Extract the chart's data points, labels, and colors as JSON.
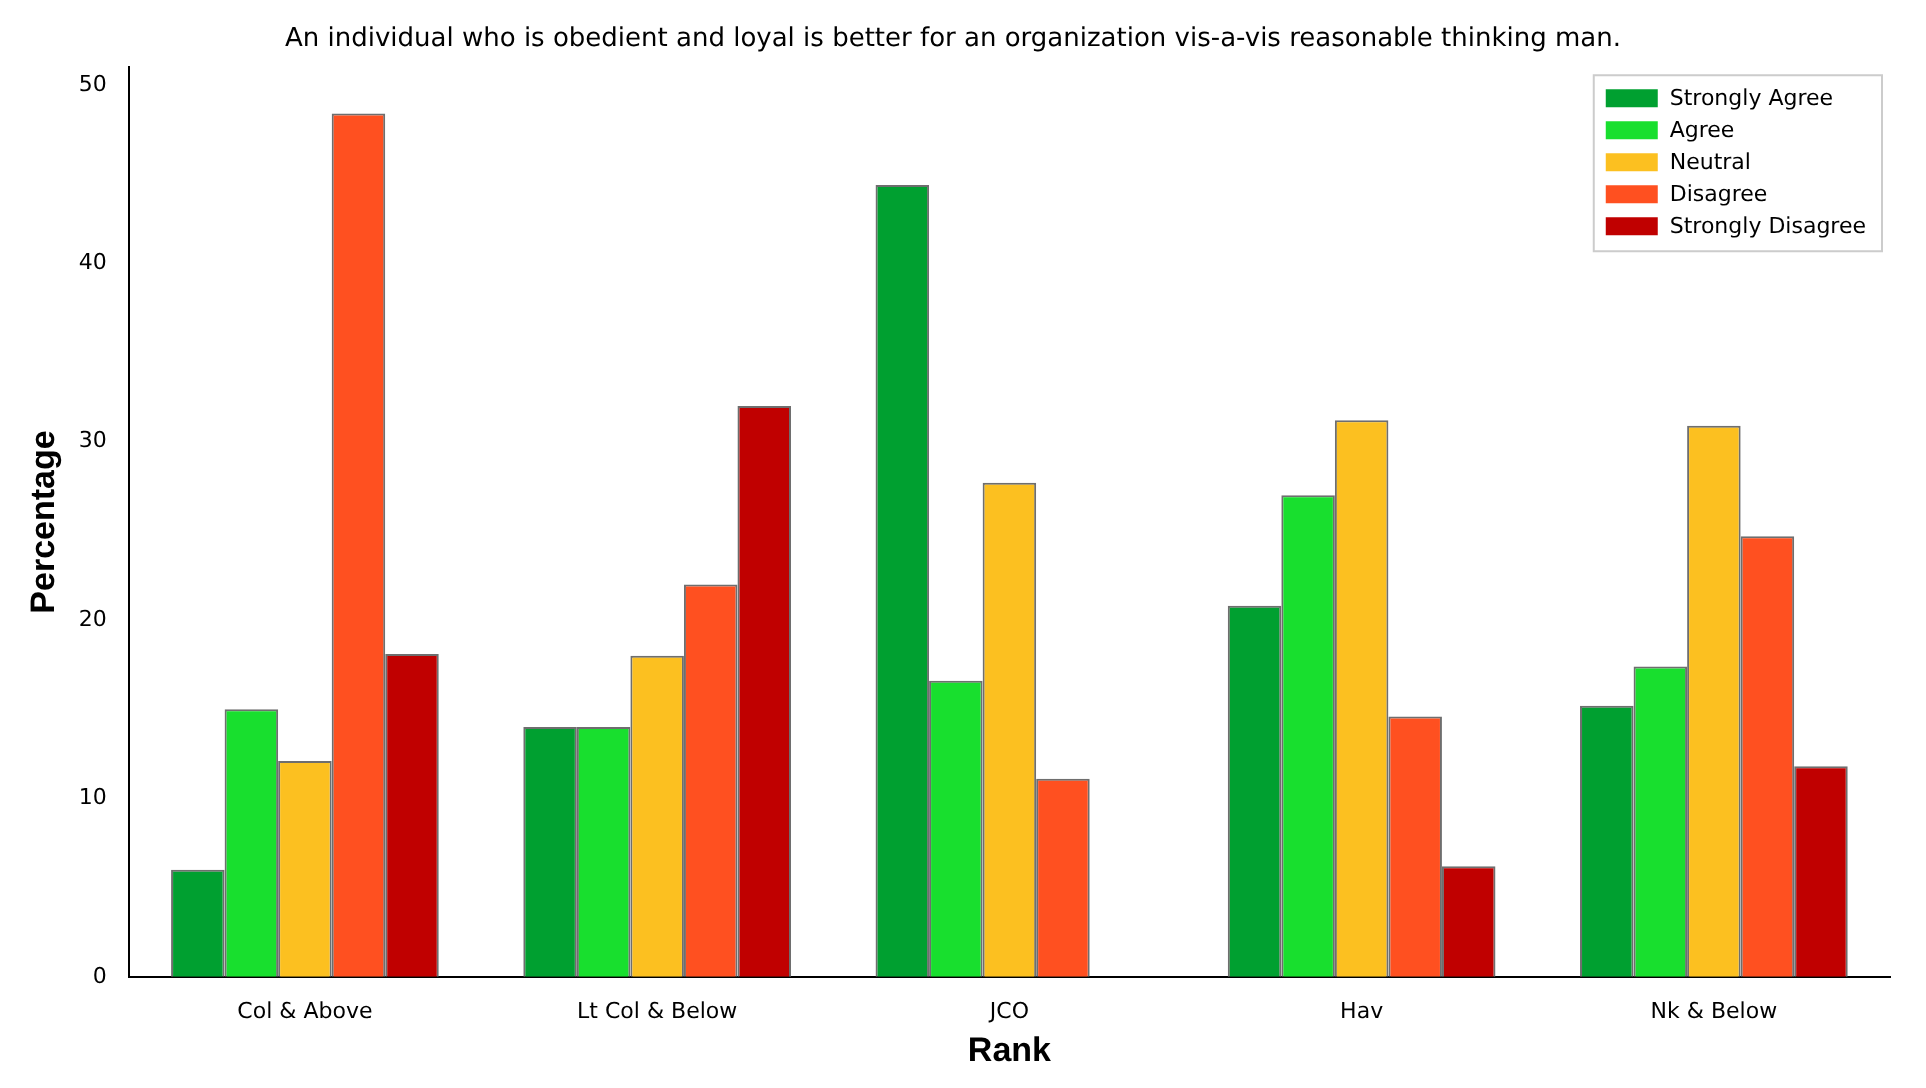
{
  "chart_data": {
    "type": "bar",
    "title": "An individual who is obedient and loyal is better for an organization vis-a-vis reasonable thinking man.",
    "xlabel": "Rank",
    "ylabel": "Percentage",
    "categories": [
      "Col & Above",
      "Lt Col & Below",
      "JCO",
      "Hav",
      "Nk & Below"
    ],
    "series": [
      {
        "name": "Strongly Agree",
        "color": "#00a030",
        "values": [
          6.0,
          14.0,
          44.4,
          20.8,
          15.2
        ]
      },
      {
        "name": "Agree",
        "color": "#18df2e",
        "values": [
          15.0,
          14.0,
          16.6,
          27.0,
          17.4
        ]
      },
      {
        "name": "Neutral",
        "color": "#fcc020",
        "values": [
          12.1,
          18.0,
          27.7,
          31.2,
          30.9
        ]
      },
      {
        "name": "Disagree",
        "color": "#ff5020",
        "values": [
          48.4,
          22.0,
          11.1,
          14.6,
          24.7
        ]
      },
      {
        "name": "Strongly Disagree",
        "color": "#c00000",
        "values": [
          18.1,
          32.0,
          0,
          6.2,
          11.8
        ]
      }
    ],
    "ylim": [
      0,
      51
    ],
    "yticks": [
      0,
      10,
      20,
      30,
      40,
      50
    ],
    "grid": false,
    "legend": "top right"
  }
}
